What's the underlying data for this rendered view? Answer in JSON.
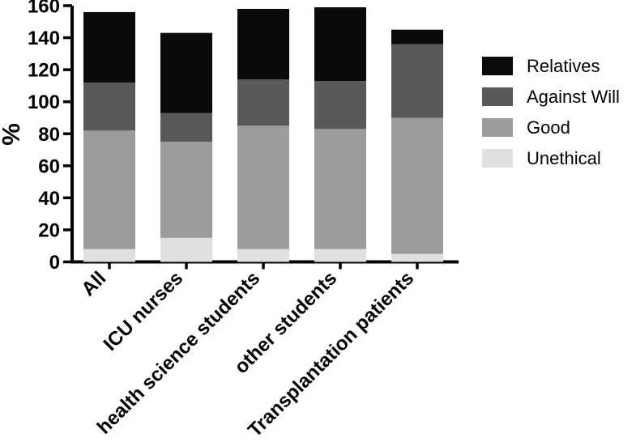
{
  "figure": {
    "background": "#ffffff"
  },
  "chart_data": {
    "type": "bar",
    "stacked": true,
    "title": "",
    "xlabel": "",
    "ylabel": "%",
    "ylim": [
      0,
      160
    ],
    "ytick_step": 20,
    "grid": false,
    "legend_position": "right",
    "axis_color": "#000000",
    "categories": [
      "All",
      "ICU nurses",
      "health science students",
      "other students",
      "Transplantation patients"
    ],
    "series": [
      {
        "name": "Unethical",
        "color": "#e0e0e0",
        "values": [
          8,
          15,
          8,
          8,
          5
        ]
      },
      {
        "name": "Good",
        "color": "#9c9c9c",
        "values": [
          74,
          60,
          77,
          75,
          85
        ]
      },
      {
        "name": "Against Will",
        "color": "#595959",
        "values": [
          30,
          18,
          29,
          30,
          46
        ]
      },
      {
        "name": "Relatives",
        "color": "#0a0a0a",
        "values": [
          44,
          50,
          44,
          46,
          9
        ]
      }
    ],
    "stack_totals": [
      156,
      143,
      158,
      159,
      145
    ],
    "legend_order": [
      "Relatives",
      "Against Will",
      "Good",
      "Unethical"
    ]
  }
}
